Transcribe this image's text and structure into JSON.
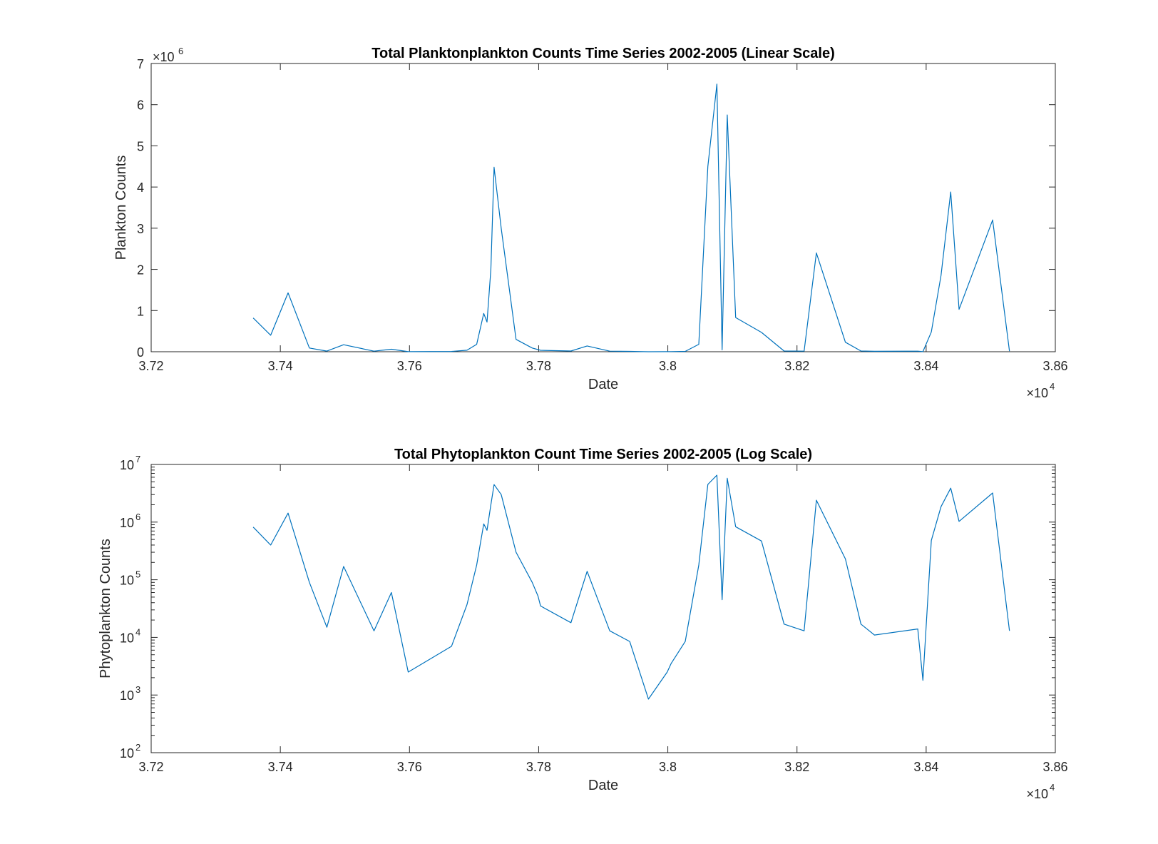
{
  "chart_data": [
    {
      "type": "line",
      "scale": "linear",
      "title": "Total Planktonplankton Counts Time Series 2002-2005 (Linear Scale)",
      "xlabel": "Date",
      "ylabel": "Plankton Counts",
      "x_exponent_base": "×10",
      "x_exponent_power": "4",
      "y_exponent_base": "×10",
      "y_exponent_power": "6",
      "xlim": [
        37200,
        38600
      ],
      "ylim": [
        0,
        7000000
      ],
      "xticks": [
        37200,
        37400,
        37600,
        37800,
        38000,
        38200,
        38400,
        38600
      ],
      "xtick_labels": [
        "3.72",
        "3.74",
        "3.76",
        "3.78",
        "3.8",
        "3.82",
        "3.84",
        "3.86"
      ],
      "yticks": [
        0,
        1000000,
        2000000,
        3000000,
        4000000,
        5000000,
        6000000,
        7000000
      ],
      "ytick_labels": [
        "0",
        "1",
        "2",
        "3",
        "4",
        "5",
        "6",
        "7"
      ],
      "grid": false,
      "color": "#0072BD",
      "x": [
        37358,
        37385,
        37412,
        37445,
        37472,
        37498,
        37545,
        37572,
        37598,
        37665,
        37689,
        37704,
        37715,
        37720,
        37726,
        37731,
        37742,
        37765,
        37790,
        37799,
        37803,
        37850,
        37875,
        37910,
        37941,
        37970,
        37999,
        38005,
        38027,
        38048,
        38062,
        38076,
        38084,
        38092,
        38105,
        38145,
        38180,
        38211,
        38230,
        38275,
        38299,
        38320,
        38387,
        38395,
        38408,
        38423,
        38438,
        38451,
        38503,
        38529
      ],
      "y": [
        820000,
        400000,
        1430000,
        90000,
        15000,
        170000,
        13000,
        60000,
        2500,
        7000,
        37000,
        180000,
        930000,
        720000,
        2000000,
        4480000,
        3000000,
        300000,
        90000,
        52000,
        35000,
        18000,
        140000,
        13000,
        8500,
        850,
        2500,
        3500,
        8500,
        180000,
        4500000,
        6500000,
        45000,
        5750000,
        830000,
        470000,
        17000,
        13000,
        2400000,
        230000,
        17000,
        11000,
        14000,
        1800,
        480000,
        1850000,
        3880000,
        1030000,
        3200000,
        13000
      ]
    },
    {
      "type": "line",
      "scale": "log",
      "title": "Total Phytoplankton Count Time Series 2002-2005 (Log Scale)",
      "xlabel": "Date",
      "ylabel": "Phytoplankton Counts",
      "x_exponent_base": "×10",
      "x_exponent_power": "4",
      "xlim": [
        37200,
        38600
      ],
      "ylim": [
        100,
        10000000
      ],
      "xticks": [
        37200,
        37400,
        37600,
        37800,
        38000,
        38200,
        38400,
        38600
      ],
      "xtick_labels": [
        "3.72",
        "3.74",
        "3.76",
        "3.78",
        "3.8",
        "3.82",
        "3.84",
        "3.86"
      ],
      "yticks": [
        100,
        1000,
        10000,
        100000,
        1000000,
        10000000
      ],
      "ytick_labels": [
        {
          "base": "10",
          "exp": "2"
        },
        {
          "base": "10",
          "exp": "3"
        },
        {
          "base": "10",
          "exp": "4"
        },
        {
          "base": "10",
          "exp": "5"
        },
        {
          "base": "10",
          "exp": "6"
        },
        {
          "base": "10",
          "exp": "7"
        }
      ],
      "grid": false,
      "color": "#0072BD",
      "x": [
        37358,
        37385,
        37412,
        37445,
        37472,
        37498,
        37545,
        37572,
        37598,
        37665,
        37689,
        37704,
        37715,
        37720,
        37726,
        37731,
        37742,
        37765,
        37790,
        37799,
        37803,
        37850,
        37875,
        37910,
        37941,
        37970,
        37999,
        38005,
        38027,
        38048,
        38062,
        38076,
        38084,
        38092,
        38105,
        38145,
        38180,
        38211,
        38230,
        38275,
        38299,
        38320,
        38387,
        38395,
        38408,
        38423,
        38438,
        38451,
        38503,
        38529
      ],
      "y": [
        820000,
        400000,
        1430000,
        90000,
        15000,
        170000,
        13000,
        60000,
        2500,
        7000,
        37000,
        180000,
        930000,
        720000,
        2000000,
        4480000,
        3000000,
        300000,
        90000,
        52000,
        35000,
        18000,
        140000,
        13000,
        8500,
        850,
        2500,
        3500,
        8500,
        180000,
        4500000,
        6500000,
        45000,
        5750000,
        830000,
        470000,
        17000,
        13000,
        2400000,
        230000,
        17000,
        11000,
        14000,
        1800,
        480000,
        1850000,
        3880000,
        1030000,
        3200000,
        13000
      ]
    }
  ]
}
